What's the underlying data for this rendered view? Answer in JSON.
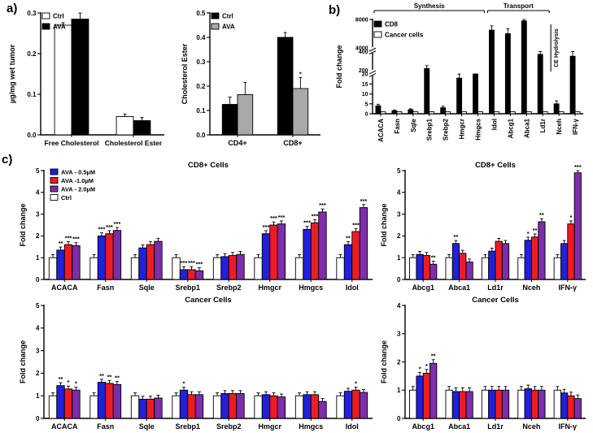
{
  "panel_labels": {
    "a": "a)",
    "b": "b)",
    "c": "c)"
  },
  "colors": {
    "ctrl_white": "#ffffff",
    "ava_black": "#000000",
    "ava_gray": "#a9a9a9",
    "ava_05": "#2020dd",
    "ava_10": "#ed1c24",
    "ava_20": "#7d2ea8"
  },
  "chart_data": [
    {
      "mount": "chart-a-left",
      "type": "bar",
      "ylabel": "µg/mg wet tumor",
      "categories": [
        "Free Cholesterol",
        "Cholesterol Ester"
      ],
      "series": [
        {
          "name": "Ctrl",
          "color": "#ffffff",
          "values": [
            0.27,
            0.045
          ],
          "errors": [
            0.006,
            0.006
          ]
        },
        {
          "name": "AVA",
          "color": "#000000",
          "values": [
            0.285,
            0.035
          ],
          "errors": [
            0.03,
            0.008
          ]
        }
      ],
      "ylim": [
        0,
        0.3
      ],
      "yticks": [
        {
          "v": 0,
          "l": "0.0"
        },
        {
          "v": 0.1,
          "l": "0.1"
        },
        {
          "v": 0.2,
          "l": "0.2"
        },
        {
          "v": 0.3,
          "l": "0.3"
        }
      ],
      "legend": {
        "x": 2,
        "y": 0,
        "dy": 13,
        "order": [
          0,
          1
        ]
      }
    },
    {
      "mount": "chart-a-right",
      "type": "bar",
      "ylabel": "Cholesterol Ester",
      "categories": [
        "CD4+",
        "CD8+"
      ],
      "series": [
        {
          "name": "Ctrl",
          "color": "#000000",
          "values": [
            0.125,
            0.4
          ],
          "errors": [
            0.03,
            0.02
          ]
        },
        {
          "name": "AVA",
          "color": "#a9a9a9",
          "values": [
            0.165,
            0.19
          ],
          "errors": [
            0.05,
            0.045
          ],
          "sig": [
            "",
            "*"
          ]
        }
      ],
      "ylim": [
        0,
        0.5
      ],
      "yticks": [
        {
          "v": 0,
          "l": "0.0"
        },
        {
          "v": 0.1,
          "l": "0.1"
        },
        {
          "v": 0.2,
          "l": "0.2"
        },
        {
          "v": 0.3,
          "l": "0.3"
        },
        {
          "v": 0.4,
          "l": "0.4"
        },
        {
          "v": 0.5,
          "l": "0.5"
        }
      ],
      "legend": {
        "x": 2,
        "y": 0,
        "dy": 13,
        "order": [
          0,
          1
        ]
      }
    },
    {
      "mount": "chart-b",
      "type": "bar",
      "ylabel": "Fold change",
      "categories": [
        "ACACA",
        "Fasn",
        "Sqle",
        "Srebp1",
        "Srebp2",
        "Hmgcr",
        "Hmgcs",
        "Idol",
        "Abcg1",
        "Abca1",
        "Ld1r",
        "Nceh",
        "IFN-γ"
      ],
      "series": [
        {
          "name": "CD8",
          "color": "#000000",
          "values": [
            4,
            1.5,
            2,
            220,
            3,
            18,
            25,
            6500,
            6000,
            7800,
            370,
            5,
            350
          ],
          "errors": [
            0.8,
            0.4,
            0.5,
            30,
            0.8,
            4,
            6,
            600,
            700,
            300,
            60,
            1.5,
            80
          ]
        },
        {
          "name": "Cancer cells",
          "color": "#ffffff",
          "values": [
            1,
            1,
            1,
            1,
            1,
            1,
            1,
            1,
            1,
            1,
            1,
            1,
            1
          ]
        }
      ],
      "anchors": [
        [
          0,
          0
        ],
        [
          20,
          0.42
        ],
        [
          200,
          0.46
        ],
        [
          400,
          0.66
        ],
        [
          4000,
          0.7
        ],
        [
          8000,
          1
        ]
      ],
      "breaks": [
        0.44,
        0.68
      ],
      "yticks": [
        {
          "v": 0,
          "l": "0"
        },
        {
          "v": 5,
          "l": "5"
        },
        {
          "v": 10,
          "l": "10"
        },
        {
          "v": 15,
          "l": "15"
        },
        {
          "v": 20,
          "l": "20"
        },
        {
          "v": 200,
          "l": "200"
        },
        {
          "v": 400,
          "l": "400"
        },
        {
          "v": 4000,
          "l": "4000"
        },
        {
          "v": 8000,
          "l": "8000"
        }
      ],
      "legend": {
        "x": 2,
        "y": 2,
        "dy": 13,
        "order": [
          0,
          1
        ]
      },
      "annotations": [
        {
          "type": "span",
          "text": "Synthesis",
          "from": 0,
          "to": 6,
          "ly": 13
        },
        {
          "type": "span",
          "text": "Transport",
          "from": 7,
          "to": 10,
          "ly": 13
        },
        {
          "type": "vtext",
          "text": "CE Hydrolysis",
          "at": 11,
          "y1": 30,
          "y2": 88
        }
      ]
    },
    {
      "mount": "chart-c-tl",
      "type": "bar",
      "title": "CD8+ Cells",
      "ylabel": "Fold change",
      "categories": [
        "ACACA",
        "Fasn",
        "Sqle",
        "Srebp1",
        "Srebp2",
        "Hmgcr",
        "Hmgcs",
        "Idol"
      ],
      "default_err": 0.14,
      "series": [
        {
          "name": "Ctrl",
          "color": "#ffffff",
          "values": [
            1,
            1,
            1,
            1,
            1,
            1,
            1,
            1
          ]
        },
        {
          "name": "AVA - 0.5µM",
          "color": "#2020dd",
          "values": [
            1.35,
            2.0,
            1.45,
            0.45,
            1.05,
            2.1,
            2.3,
            1.6
          ],
          "sig": [
            "**",
            "***",
            "",
            "***",
            "",
            "***",
            "***",
            "**"
          ]
        },
        {
          "name": "AVA -1.0µM",
          "color": "#ed1c24",
          "values": [
            1.6,
            2.1,
            1.6,
            0.45,
            1.1,
            2.5,
            2.6,
            2.2
          ],
          "sig": [
            "***",
            "***",
            "",
            "***",
            "",
            "***",
            "***",
            "***"
          ]
        },
        {
          "name": "AVA - 2.0µM",
          "color": "#7d2ea8",
          "values": [
            1.55,
            2.25,
            1.75,
            0.4,
            1.15,
            2.55,
            3.1,
            3.3
          ],
          "sig": [
            "***",
            "***",
            "",
            "***",
            "",
            "***",
            "***",
            "***"
          ]
        }
      ],
      "ylim": [
        0,
        5
      ],
      "yticks": [
        {
          "v": 0,
          "l": "0"
        },
        {
          "v": 1,
          "l": "1"
        },
        {
          "v": 2,
          "l": "2"
        },
        {
          "v": 3,
          "l": "3"
        },
        {
          "v": 4,
          "l": "4"
        },
        {
          "v": 5,
          "l": "5"
        }
      ],
      "legend": {
        "x": 8,
        "y": -2,
        "dy": 10.5,
        "fs": 7.5,
        "order": [
          1,
          2,
          3,
          0
        ]
      }
    },
    {
      "mount": "chart-c-tr",
      "type": "bar",
      "title": "CD8+ Cells",
      "ylabel": "Fold change",
      "categories": [
        "Abcg1",
        "Abca1",
        "Ld1r",
        "Nceh",
        "IFN-γ"
      ],
      "default_err": 0.14,
      "series": [
        {
          "name": "Ctrl",
          "color": "#ffffff",
          "values": [
            1,
            1,
            1,
            1,
            1
          ]
        },
        {
          "name": "AVA - 0.5µM",
          "color": "#2020dd",
          "values": [
            1.15,
            1.65,
            1.3,
            1.8,
            1.65
          ],
          "sig": [
            "",
            "**",
            "",
            "*",
            ""
          ]
        },
        {
          "name": "AVA -1.0µM",
          "color": "#ed1c24",
          "values": [
            1.1,
            1.2,
            1.75,
            1.95,
            2.55
          ],
          "sig": [
            "",
            "",
            "",
            "**",
            "*"
          ]
        },
        {
          "name": "AVA - 2.0µM",
          "color": "#7d2ea8",
          "values": [
            0.7,
            0.8,
            1.65,
            2.65,
            4.9
          ],
          "sig": [
            "**",
            "",
            "",
            "**",
            "***"
          ]
        }
      ],
      "ylim": [
        0,
        5
      ],
      "yticks": [
        {
          "v": 0,
          "l": "0"
        },
        {
          "v": 1,
          "l": "1"
        },
        {
          "v": 2,
          "l": "2"
        },
        {
          "v": 3,
          "l": "3"
        },
        {
          "v": 4,
          "l": "4"
        },
        {
          "v": 5,
          "l": "5"
        }
      ]
    },
    {
      "mount": "chart-c-bl",
      "type": "bar",
      "title": "Cancer Cells",
      "ylabel": "Fold change",
      "categories": [
        "ACACA",
        "Fasn",
        "Sqle",
        "Srebp1",
        "Srebp2",
        "Hmgcr",
        "Hmgcs",
        "Idol"
      ],
      "default_err": 0.13,
      "series": [
        {
          "name": "Ctrl",
          "color": "#ffffff",
          "values": [
            1,
            1,
            1,
            1,
            1,
            1,
            1,
            1
          ]
        },
        {
          "name": "AVA - 0.5µM",
          "color": "#2020dd",
          "values": [
            1.45,
            1.6,
            0.85,
            1.25,
            1.1,
            1.05,
            1.05,
            1.2
          ],
          "sig": [
            "**",
            "**",
            "",
            "*",
            "",
            "",
            "",
            ""
          ]
        },
        {
          "name": "AVA -1.0µM",
          "color": "#ed1c24",
          "values": [
            1.3,
            1.55,
            0.85,
            1.05,
            1.1,
            1.0,
            1.05,
            1.25
          ],
          "sig": [
            "*",
            "**",
            "",
            "",
            "",
            "",
            "",
            "*"
          ]
        },
        {
          "name": "AVA - 2.0µM",
          "color": "#7d2ea8",
          "values": [
            1.25,
            1.5,
            0.9,
            1.05,
            1.1,
            0.95,
            0.75,
            1.15
          ],
          "sig": [
            "*",
            "**",
            "",
            "",
            "",
            "",
            "",
            ""
          ]
        }
      ],
      "ylim": [
        0,
        5
      ],
      "yticks": [
        {
          "v": 0,
          "l": "0"
        },
        {
          "v": 1,
          "l": "1"
        },
        {
          "v": 2,
          "l": "2"
        },
        {
          "v": 3,
          "l": "3"
        },
        {
          "v": 4,
          "l": "4"
        },
        {
          "v": 5,
          "l": "5"
        }
      ]
    },
    {
      "mount": "chart-c-br",
      "type": "bar",
      "title": "Cancer Cells",
      "ylabel": "Fold change",
      "categories": [
        "Abcg1",
        "Abca1",
        "Ld1r",
        "Nceh",
        "IFN-γ"
      ],
      "default_err": 0.13,
      "series": [
        {
          "name": "Ctrl",
          "color": "#ffffff",
          "values": [
            1,
            1,
            1,
            1,
            1
          ]
        },
        {
          "name": "AVA - 0.5µM",
          "color": "#2020dd",
          "values": [
            1.5,
            0.95,
            1.0,
            1.05,
            0.9
          ],
          "sig": [
            "*",
            "",
            "",
            "",
            ""
          ]
        },
        {
          "name": "AVA -1.0µM",
          "color": "#ed1c24",
          "values": [
            1.6,
            0.95,
            1.0,
            1.0,
            0.8
          ],
          "sig": [
            "*",
            "",
            "",
            "",
            ""
          ]
        },
        {
          "name": "AVA - 2.0µM",
          "color": "#7d2ea8",
          "values": [
            1.95,
            0.95,
            1.0,
            1.0,
            0.7
          ],
          "sig": [
            "**",
            "",
            "",
            "",
            ""
          ]
        }
      ],
      "ylim": [
        0,
        4
      ],
      "yticks": [
        {
          "v": 0,
          "l": "0"
        },
        {
          "v": 1,
          "l": "1"
        },
        {
          "v": 2,
          "l": "2"
        },
        {
          "v": 3,
          "l": "3"
        },
        {
          "v": 4,
          "l": "4"
        }
      ]
    }
  ]
}
